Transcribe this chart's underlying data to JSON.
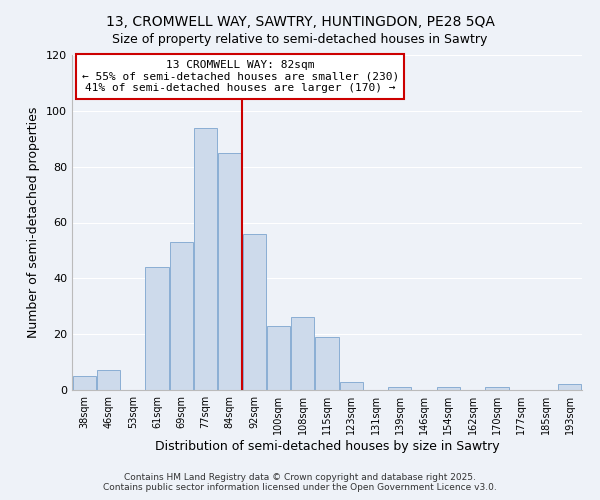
{
  "title": "13, CROMWELL WAY, SAWTRY, HUNTINGDON, PE28 5QA",
  "subtitle": "Size of property relative to semi-detached houses in Sawtry",
  "xlabel": "Distribution of semi-detached houses by size in Sawtry",
  "ylabel": "Number of semi-detached properties",
  "bar_labels": [
    "38sqm",
    "46sqm",
    "53sqm",
    "61sqm",
    "69sqm",
    "77sqm",
    "84sqm",
    "92sqm",
    "100sqm",
    "108sqm",
    "115sqm",
    "123sqm",
    "131sqm",
    "139sqm",
    "146sqm",
    "154sqm",
    "162sqm",
    "170sqm",
    "177sqm",
    "185sqm",
    "193sqm"
  ],
  "bar_values": [
    5,
    7,
    0,
    44,
    53,
    94,
    85,
    56,
    23,
    26,
    19,
    3,
    0,
    1,
    0,
    1,
    0,
    1,
    0,
    0,
    2
  ],
  "bar_color": "#cddaeb",
  "bar_edgecolor": "#8aaed4",
  "vline_x": 6.5,
  "vline_color": "#cc0000",
  "annotation_title": "13 CROMWELL WAY: 82sqm",
  "annotation_line1": "← 55% of semi-detached houses are smaller (230)",
  "annotation_line2": "41% of semi-detached houses are larger (170) →",
  "annotation_box_color": "#ffffff",
  "annotation_border_color": "#cc0000",
  "ylim": [
    0,
    120
  ],
  "yticks": [
    0,
    20,
    40,
    60,
    80,
    100,
    120
  ],
  "footer1": "Contains HM Land Registry data © Crown copyright and database right 2025.",
  "footer2": "Contains public sector information licensed under the Open Government Licence v3.0.",
  "bg_color": "#eef2f8",
  "grid_color": "#ffffff",
  "title_fontsize": 10,
  "subtitle_fontsize": 9,
  "ann_fontsize": 8,
  "axis_fontsize": 8,
  "tick_fontsize": 7,
  "footer_fontsize": 6.5
}
